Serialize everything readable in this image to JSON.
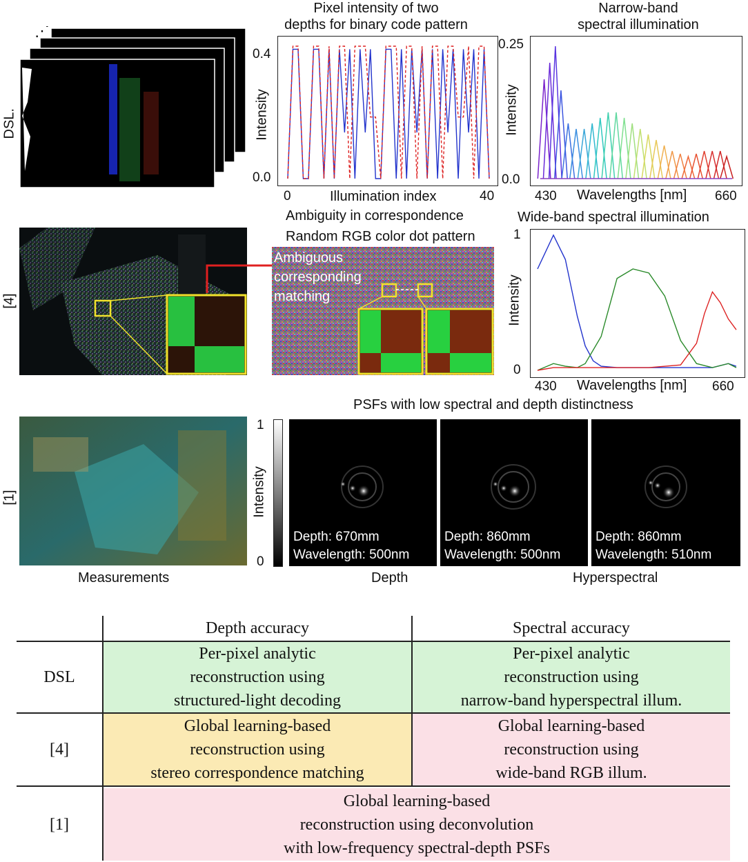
{
  "row_labels": {
    "dsl": "DSL.",
    "ref4": "[4]",
    "ref1": "[1]"
  },
  "chart1": {
    "title_line1": "Pixel intensity of two",
    "title_line2": "depths for binary code pattern",
    "xlabel": "Illumination index",
    "ylabel": "Intensity",
    "xticks": [
      "0",
      "20",
      "40"
    ],
    "yticks": [
      "0.0",
      "0.4"
    ],
    "caption": "Ambiguity in correspondence"
  },
  "chart2": {
    "title_line1": "Narrow-band",
    "title_line2": "spectral illumination",
    "xlabel": "Wavelengths [nm]",
    "ylabel": "Intensity",
    "xticks": [
      "430",
      "660"
    ],
    "yticks": [
      "0.0",
      "0.25"
    ]
  },
  "chart3": {
    "title": "Wide-band spectral illumination",
    "xlabel": "Wavelengths [nm]",
    "ylabel": "Intensity",
    "xticks": [
      "430",
      "660"
    ],
    "yticks": [
      "0",
      "1"
    ]
  },
  "dot_pattern": {
    "title": "Random RGB color dot pattern",
    "annotation_line1": "Ambiguous",
    "annotation_line2": "corresponding",
    "annotation_line3": "matching"
  },
  "psf_section": {
    "title": "PSFs with low spectral and depth distinctness",
    "colorbar_label": "Intensity",
    "colorbar_max": "1",
    "colorbar_min": "0",
    "panels": [
      {
        "depth": "Depth: 670mm",
        "wavelength": "Wavelength: 500nm"
      },
      {
        "depth": "Depth: 860mm",
        "wavelength": "Wavelength: 500nm"
      },
      {
        "depth": "Depth: 860mm",
        "wavelength": "Wavelength: 510nm"
      }
    ],
    "caption_measurements": "Measurements",
    "caption_depth": "Depth",
    "caption_hyper": "Hyperspectral"
  },
  "table": {
    "header_depth": "Depth accuracy",
    "header_spectral": "Spectral accuracy",
    "rows": [
      {
        "label": "DSL",
        "depth": [
          "Per-pixel analytic",
          "reconstruction using",
          "structured-light decoding"
        ],
        "spectral": [
          "Per-pixel analytic",
          "reconstruction using",
          "narrow-band hyperspectral illum."
        ]
      },
      {
        "label": "[4]",
        "depth": [
          "Global learning-based",
          "reconstruction using",
          "stereo correspondence matching"
        ],
        "spectral": [
          "Global learning-based",
          "reconstruction using",
          "wide-band RGB illum."
        ]
      },
      {
        "label": "[1]",
        "merged": [
          "Global learning-based",
          "reconstruction using deconvolution",
          "with low-frequency spectral-depth PSFs"
        ]
      }
    ]
  },
  "chart_data": [
    {
      "type": "line",
      "title": "Pixel intensity of two depths for binary code pattern",
      "xlabel": "Illumination index",
      "ylabel": "Intensity",
      "xlim": [
        0,
        40
      ],
      "ylim": [
        0,
        0.43
      ],
      "series": [
        {
          "color": "#2233cc",
          "values": [
            0,
            0.42,
            0.42,
            0,
            0,
            0.42,
            0.42,
            0,
            0.42,
            0,
            0.42,
            0.15,
            0.42,
            0,
            0.42,
            0.15,
            0.42,
            0,
            0,
            0.42,
            0.42,
            0,
            0.42,
            0,
            0.42,
            0.15,
            0.42,
            0,
            0.42,
            0,
            0.42,
            0.15,
            0.42,
            0,
            0.42,
            0.15,
            0.42,
            0,
            0.42,
            0
          ]
        },
        {
          "color": "#dd2222",
          "dash": true,
          "values": [
            0,
            0.43,
            0.43,
            0,
            0,
            0.43,
            0.43,
            0,
            0.43,
            0,
            0.43,
            0.43,
            0,
            0.43,
            0.43,
            0.43,
            0.2,
            0.2,
            0,
            0.43,
            0.43,
            0.43,
            0,
            0.43,
            0.43,
            0,
            0.43,
            0,
            0.43,
            0.43,
            0,
            0.43,
            0.43,
            0.2,
            0.2,
            0.43,
            0,
            0.43,
            0.43,
            0
          ]
        }
      ]
    },
    {
      "type": "line",
      "title": "Narrow-band spectral illumination",
      "xlabel": "Wavelengths [nm]",
      "ylabel": "Intensity",
      "xlim": [
        420,
        670
      ],
      "ylim": [
        0,
        0.25
      ],
      "peaks": [
        {
          "center": 430,
          "height": 0.18,
          "color": "#7a22cc"
        },
        {
          "center": 437,
          "height": 0.21,
          "color": "#6a2ad8"
        },
        {
          "center": 444,
          "height": 0.24,
          "color": "#5a35e0"
        },
        {
          "center": 451,
          "height": 0.16,
          "color": "#3b55e0"
        },
        {
          "center": 460,
          "height": 0.1,
          "color": "#3a70e0"
        },
        {
          "center": 470,
          "height": 0.09,
          "color": "#3a8ee0"
        },
        {
          "center": 480,
          "height": 0.09,
          "color": "#3aa6d8"
        },
        {
          "center": 490,
          "height": 0.1,
          "color": "#30b8d0"
        },
        {
          "center": 500,
          "height": 0.11,
          "color": "#30c8c0"
        },
        {
          "center": 510,
          "height": 0.12,
          "color": "#40d0b0"
        },
        {
          "center": 520,
          "height": 0.12,
          "color": "#60d8a0"
        },
        {
          "center": 530,
          "height": 0.11,
          "color": "#80e090"
        },
        {
          "center": 540,
          "height": 0.1,
          "color": "#a0e080"
        },
        {
          "center": 550,
          "height": 0.09,
          "color": "#c0e070"
        },
        {
          "center": 560,
          "height": 0.08,
          "color": "#d8d860"
        },
        {
          "center": 570,
          "height": 0.07,
          "color": "#e8c858"
        },
        {
          "center": 580,
          "height": 0.06,
          "color": "#f0b050"
        },
        {
          "center": 590,
          "height": 0.05,
          "color": "#f09848"
        },
        {
          "center": 600,
          "height": 0.045,
          "color": "#f08040"
        },
        {
          "center": 610,
          "height": 0.04,
          "color": "#ee6838"
        },
        {
          "center": 620,
          "height": 0.045,
          "color": "#e85030"
        },
        {
          "center": 630,
          "height": 0.05,
          "color": "#e04030"
        },
        {
          "center": 640,
          "height": 0.05,
          "color": "#d83030"
        },
        {
          "center": 650,
          "height": 0.05,
          "color": "#d02828"
        },
        {
          "center": 658,
          "height": 0.04,
          "color": "#c82020"
        }
      ]
    },
    {
      "type": "line",
      "title": "Wide-band spectral illumination",
      "xlabel": "Wavelengths [nm]",
      "ylabel": "Intensity",
      "xlim": [
        420,
        670
      ],
      "ylim": [
        0,
        1
      ],
      "series": [
        {
          "color": "#2233cc",
          "x": [
            420,
            440,
            455,
            470,
            480,
            490,
            500,
            520,
            560,
            600,
            640,
            660,
            670
          ],
          "y": [
            0.75,
            1.0,
            0.82,
            0.4,
            0.18,
            0.07,
            0.03,
            0.02,
            0.02,
            0.02,
            0.02,
            0.05,
            0.03
          ]
        },
        {
          "color": "#2a8a2a",
          "x": [
            420,
            440,
            455,
            470,
            480,
            500,
            520,
            540,
            560,
            580,
            600,
            620,
            640,
            660,
            670
          ],
          "y": [
            0.0,
            0.05,
            0.03,
            0.02,
            0.05,
            0.25,
            0.68,
            0.75,
            0.72,
            0.55,
            0.22,
            0.05,
            0.02,
            0.05,
            0.02
          ]
        },
        {
          "color": "#dd2222",
          "x": [
            420,
            440,
            460,
            480,
            500,
            560,
            600,
            620,
            630,
            640,
            650,
            660,
            670
          ],
          "y": [
            0.0,
            0.02,
            0.02,
            0.02,
            0.02,
            0.02,
            0.04,
            0.2,
            0.42,
            0.58,
            0.5,
            0.38,
            0.3
          ]
        }
      ]
    }
  ]
}
